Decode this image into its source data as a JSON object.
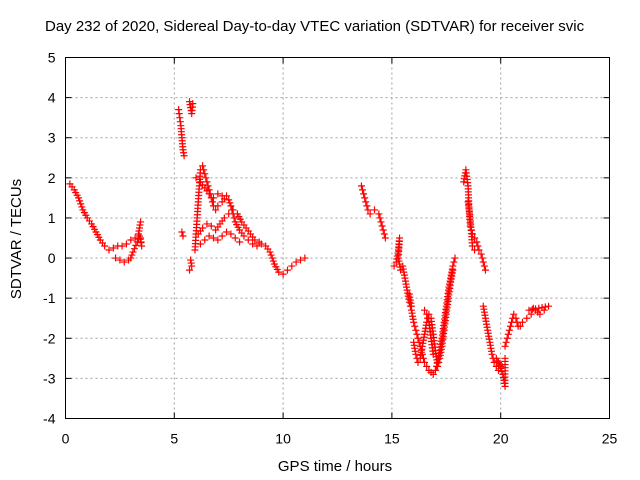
{
  "chart_data": {
    "type": "scatter",
    "title": "Day 232 of 2020, Sidereal Day-to-day VTEC variation (SDTVAR) for receiver svic",
    "xlabel": "GPS time / hours",
    "ylabel": "SDTVAR / TECUs",
    "xlim": [
      0,
      25
    ],
    "ylim": [
      -4,
      5
    ],
    "x_ticks": [
      "0",
      "5",
      "10",
      "15",
      "20",
      "25"
    ],
    "y_ticks": [
      "-4",
      "-3",
      "-2",
      "-1",
      "0",
      "1",
      "2",
      "3",
      "4",
      "5"
    ],
    "grid": true,
    "marker": "+",
    "series": [
      {
        "name": "SDTVAR",
        "color": "#ff0000",
        "segments": [
          [
            [
              0.2,
              1.85
            ],
            [
              0.4,
              1.7
            ],
            [
              0.6,
              1.5
            ],
            [
              0.8,
              1.2
            ],
            [
              1.0,
              1.0
            ],
            [
              1.2,
              0.85
            ],
            [
              1.4,
              0.65
            ],
            [
              1.6,
              0.45
            ],
            [
              1.8,
              0.3
            ],
            [
              2.0,
              0.2
            ],
            [
              2.2,
              0.25
            ],
            [
              2.4,
              0.3
            ],
            [
              2.6,
              0.3
            ],
            [
              2.8,
              0.35
            ],
            [
              3.0,
              0.45
            ],
            [
              3.2,
              0.5
            ],
            [
              3.35,
              0.6
            ],
            [
              3.4,
              0.75
            ],
            [
              3.45,
              0.9
            ]
          ],
          [
            [
              2.3,
              0.0
            ],
            [
              2.5,
              -0.05
            ],
            [
              2.7,
              -0.1
            ],
            [
              2.9,
              -0.05
            ],
            [
              3.0,
              0.0
            ],
            [
              3.1,
              0.15
            ],
            [
              3.3,
              0.4
            ],
            [
              3.4,
              0.55
            ],
            [
              3.5,
              0.3
            ],
            [
              3.45,
              0.5
            ]
          ],
          [
            [
              5.2,
              3.7
            ],
            [
              5.25,
              3.5
            ],
            [
              5.3,
              3.3
            ],
            [
              5.35,
              3.0
            ],
            [
              5.4,
              2.7
            ],
            [
              5.45,
              2.55
            ],
            [
              5.35,
              0.65
            ],
            [
              5.4,
              0.55
            ],
            [
              5.7,
              3.9
            ],
            [
              5.75,
              3.75
            ],
            [
              5.8,
              3.6
            ],
            [
              5.85,
              3.85
            ],
            [
              5.75,
              -0.05
            ],
            [
              5.8,
              -0.2
            ],
            [
              5.7,
              -0.3
            ]
          ],
          [
            [
              5.95,
              0.2
            ],
            [
              6.0,
              0.6
            ],
            [
              6.05,
              1.0
            ],
            [
              6.1,
              1.4
            ],
            [
              6.15,
              1.8
            ],
            [
              6.2,
              2.2
            ],
            [
              6.3,
              2.3
            ],
            [
              6.4,
              2.1
            ],
            [
              6.5,
              1.9
            ],
            [
              6.6,
              1.7
            ],
            [
              6.7,
              1.5
            ],
            [
              6.8,
              1.3
            ],
            [
              6.9,
              1.2
            ],
            [
              7.0,
              1.3
            ],
            [
              7.2,
              1.4
            ],
            [
              7.4,
              1.55
            ],
            [
              7.5,
              1.45
            ],
            [
              7.6,
              1.3
            ],
            [
              7.7,
              1.1
            ],
            [
              7.8,
              0.9
            ],
            [
              8.0,
              0.7
            ],
            [
              8.2,
              0.55
            ],
            [
              8.4,
              0.45
            ],
            [
              8.6,
              0.35
            ],
            [
              8.8,
              0.3
            ],
            [
              9.0,
              0.35
            ],
            [
              9.2,
              0.3
            ],
            [
              9.4,
              0.15
            ],
            [
              9.6,
              -0.15
            ],
            [
              9.8,
              -0.35
            ],
            [
              10.0,
              -0.4
            ],
            [
              10.2,
              -0.3
            ],
            [
              10.4,
              -0.2
            ],
            [
              10.6,
              -0.1
            ],
            [
              10.8,
              -0.05
            ],
            [
              11.0,
              0.0
            ]
          ],
          [
            [
              6.1,
              0.6
            ],
            [
              6.3,
              0.75
            ],
            [
              6.5,
              0.85
            ],
            [
              6.7,
              0.8
            ],
            [
              6.9,
              0.7
            ],
            [
              7.1,
              0.85
            ],
            [
              7.3,
              1.0
            ],
            [
              7.5,
              1.1
            ],
            [
              7.7,
              1.2
            ],
            [
              7.9,
              1.1
            ],
            [
              8.1,
              0.9
            ],
            [
              8.3,
              0.75
            ],
            [
              8.5,
              0.6
            ],
            [
              8.7,
              0.45
            ],
            [
              8.9,
              0.4
            ],
            [
              6.2,
              0.35
            ],
            [
              6.4,
              0.45
            ],
            [
              6.6,
              0.55
            ],
            [
              6.8,
              0.5
            ],
            [
              7.0,
              0.45
            ],
            [
              7.2,
              0.55
            ],
            [
              7.4,
              0.65
            ],
            [
              7.6,
              0.6
            ],
            [
              7.8,
              0.5
            ],
            [
              8.0,
              0.4
            ]
          ],
          [
            [
              6.0,
              2.0
            ],
            [
              6.2,
              1.9
            ],
            [
              6.4,
              1.75
            ],
            [
              6.6,
              1.6
            ],
            [
              6.8,
              1.5
            ],
            [
              7.0,
              1.6
            ],
            [
              7.2,
              1.55
            ]
          ],
          [
            [
              13.6,
              1.8
            ],
            [
              13.7,
              1.6
            ],
            [
              13.8,
              1.4
            ],
            [
              13.9,
              1.2
            ],
            [
              14.0,
              1.1
            ],
            [
              14.2,
              1.2
            ],
            [
              14.4,
              1.1
            ],
            [
              14.5,
              0.9
            ],
            [
              14.6,
              0.7
            ],
            [
              14.7,
              0.5
            ]
          ],
          [
            [
              15.1,
              -0.2
            ],
            [
              15.2,
              -0.1
            ],
            [
              15.3,
              0.2
            ],
            [
              15.35,
              0.5
            ],
            [
              15.3,
              0.0
            ],
            [
              15.4,
              -0.3
            ],
            [
              15.5,
              -0.2
            ],
            [
              15.6,
              -0.5
            ],
            [
              15.7,
              -0.8
            ],
            [
              15.8,
              -1.1
            ],
            [
              15.9,
              -1.3
            ],
            [
              16.0,
              -1.6
            ],
            [
              16.1,
              -1.8
            ],
            [
              16.2,
              -2.0
            ],
            [
              16.3,
              -2.2
            ],
            [
              16.4,
              -2.4
            ],
            [
              16.5,
              -2.6
            ],
            [
              16.6,
              -2.7
            ],
            [
              16.7,
              -2.8
            ],
            [
              16.8,
              -2.85
            ],
            [
              16.9,
              -2.9
            ],
            [
              17.0,
              -2.8
            ],
            [
              17.1,
              -2.6
            ],
            [
              17.2,
              -2.3
            ],
            [
              17.3,
              -2.0
            ],
            [
              17.4,
              -1.6
            ],
            [
              17.5,
              -1.2
            ],
            [
              17.6,
              -0.8
            ],
            [
              17.7,
              -0.5
            ],
            [
              17.8,
              -0.2
            ],
            [
              17.9,
              0.0
            ]
          ],
          [
            [
              16.0,
              -2.1
            ],
            [
              16.1,
              -2.4
            ],
            [
              16.2,
              -2.6
            ],
            [
              16.3,
              -2.5
            ],
            [
              16.4,
              -2.2
            ],
            [
              16.5,
              -1.9
            ],
            [
              16.6,
              -1.6
            ],
            [
              16.7,
              -1.4
            ],
            [
              16.8,
              -1.5
            ],
            [
              16.9,
              -1.9
            ],
            [
              17.0,
              -2.3
            ],
            [
              17.1,
              -2.7
            ],
            [
              17.2,
              -2.5
            ],
            [
              17.3,
              -2.2
            ],
            [
              17.4,
              -1.8
            ],
            [
              17.5,
              -1.4
            ],
            [
              17.6,
              -1.0
            ],
            [
              17.7,
              -0.6
            ],
            [
              17.8,
              -0.3
            ],
            [
              16.5,
              -1.3
            ],
            [
              16.6,
              -1.4
            ],
            [
              16.7,
              -1.6
            ],
            [
              16.8,
              -2.0
            ],
            [
              16.9,
              -2.4
            ],
            [
              15.8,
              -0.9
            ],
            [
              15.9,
              -1.2
            ]
          ],
          [
            [
              18.3,
              1.9
            ],
            [
              18.4,
              2.2
            ],
            [
              18.5,
              1.8
            ],
            [
              18.55,
              1.2
            ],
            [
              18.6,
              0.8
            ],
            [
              18.7,
              0.6
            ],
            [
              18.8,
              0.5
            ],
            [
              18.9,
              0.4
            ],
            [
              19.0,
              0.2
            ],
            [
              19.1,
              0.1
            ],
            [
              19.2,
              -0.1
            ],
            [
              19.3,
              -0.3
            ],
            [
              18.5,
              1.4
            ],
            [
              18.6,
              1.0
            ],
            [
              18.7,
              0.3
            ],
            [
              18.8,
              0.2
            ]
          ],
          [
            [
              19.2,
              -1.2
            ],
            [
              19.3,
              -1.5
            ],
            [
              19.4,
              -1.8
            ],
            [
              19.5,
              -2.1
            ],
            [
              19.6,
              -2.4
            ],
            [
              19.7,
              -2.6
            ],
            [
              19.8,
              -2.7
            ],
            [
              19.9,
              -2.8
            ],
            [
              20.0,
              -2.7
            ],
            [
              19.8,
              -2.5
            ],
            [
              19.9,
              -2.6
            ],
            [
              20.1,
              -2.9
            ],
            [
              20.2,
              -3.2
            ],
            [
              20.2,
              -2.5
            ]
          ],
          [
            [
              20.2,
              -2.2
            ],
            [
              20.3,
              -2.0
            ],
            [
              20.4,
              -1.8
            ],
            [
              20.5,
              -1.6
            ],
            [
              20.6,
              -1.4
            ],
            [
              20.7,
              -1.5
            ],
            [
              20.8,
              -1.7
            ],
            [
              20.9,
              -1.7
            ],
            [
              21.0,
              -1.6
            ],
            [
              21.2,
              -1.5
            ],
            [
              21.4,
              -1.4
            ],
            [
              21.6,
              -1.3
            ],
            [
              21.8,
              -1.4
            ],
            [
              22.0,
              -1.3
            ],
            [
              22.2,
              -1.2
            ],
            [
              21.3,
              -1.3
            ],
            [
              21.5,
              -1.25
            ],
            [
              21.7,
              -1.35
            ]
          ]
        ]
      }
    ]
  }
}
